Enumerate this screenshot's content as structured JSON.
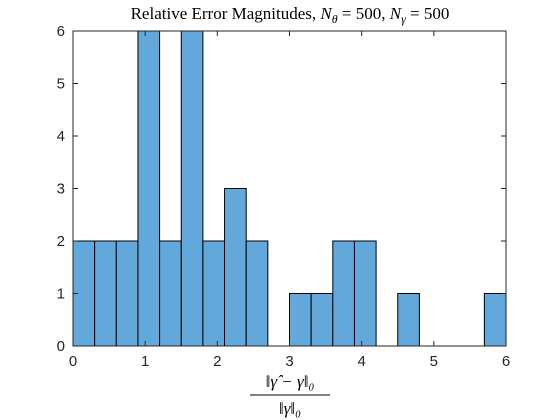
{
  "chart_data": {
    "type": "bar",
    "title": {
      "prefix": "Relative Error Magnitudes, ",
      "n_theta_symbol": "N",
      "n_theta_sub": "θ",
      "n_theta_value": " = 500",
      "separator": ", ",
      "n_gamma_symbol": "N",
      "n_gamma_sub": "γ",
      "n_gamma_value": " = 500"
    },
    "xlabel": {
      "numerator": "‖γ̂ − γ‖₀",
      "denominator": "‖γ‖₀"
    },
    "ylabel": "",
    "xlim": [
      0,
      6
    ],
    "ylim": [
      0,
      6
    ],
    "bin_width": 0.3,
    "bin_edges_start": 0,
    "values": [
      2,
      2,
      2,
      6,
      2,
      6,
      2,
      3,
      2,
      0,
      1,
      1,
      2,
      2,
      0,
      1,
      0,
      0,
      0,
      1
    ],
    "x_ticks": [
      "0",
      "1",
      "2",
      "3",
      "4",
      "5",
      "6"
    ],
    "y_ticks": [
      "0",
      "1",
      "2",
      "3",
      "4",
      "5",
      "6"
    ],
    "bar_color": "#63a8db",
    "edge_color": "#000000",
    "grid": false,
    "legend": "none"
  }
}
